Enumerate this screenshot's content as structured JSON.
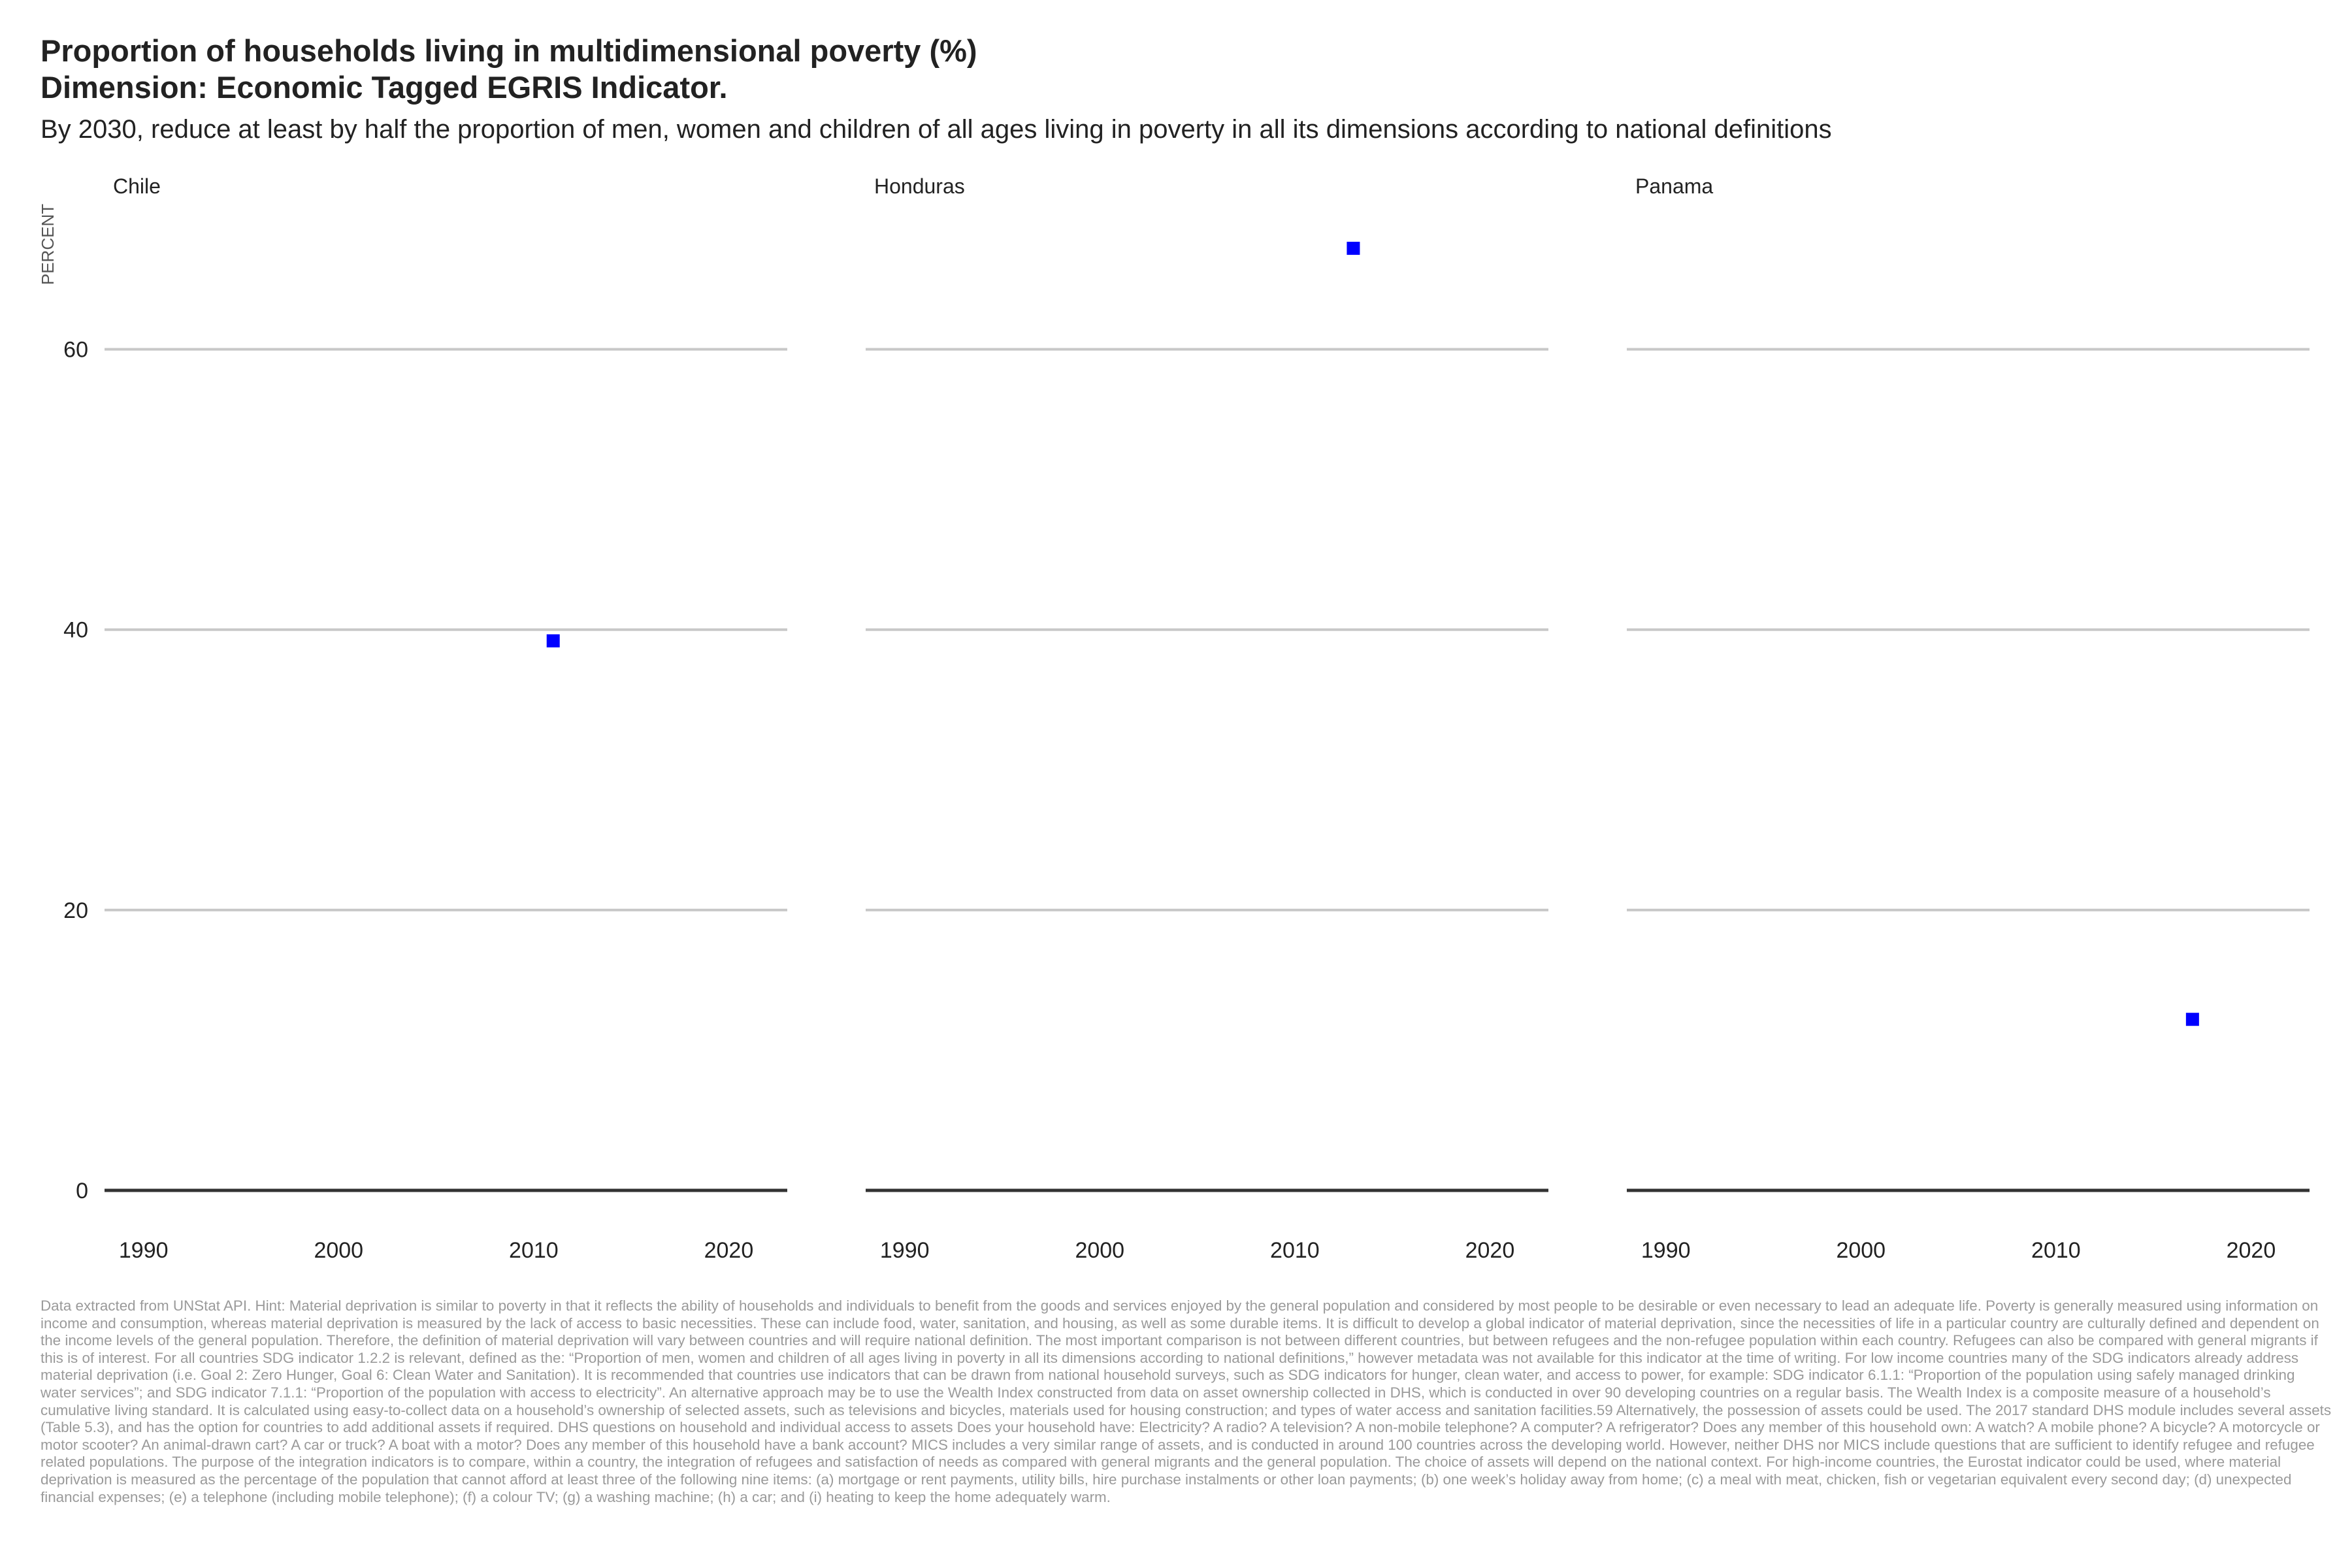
{
  "title": "Proportion of households living in multidimensional poverty (%)",
  "title_line2": "Dimension: Economic Tagged EGRIS Indicator.",
  "subtitle": "By 2030, reduce at least by half the proportion of men, women and children of all ages living in poverty in all its dimensions according to national definitions",
  "footnote": "Data extracted from UNStat API. Hint: Material deprivation is similar to poverty in that it reflects the ability of households and individuals to benefit from the goods and services enjoyed by the general population and considered by most people to be desirable or even necessary to lead an adequate life. Poverty is generally measured using information on income and consumption, whereas material deprivation is measured by the lack of access to basic necessities. These can include food, water, sanitation, and housing, as well as some durable items. It is difficult to develop a global indicator of material deprivation, since the necessities of life in a particular country are culturally defined and dependent on the income levels of the general population. Therefore, the definition of material deprivation will vary between countries and will require national definition. The most important comparison is not between different countries, but between refugees and the non-refugee population within each country. Refugees can also be compared with general migrants if this is of interest. For all countries SDG indicator 1.2.2 is relevant, defined as the: “Proportion of men, women and children of all ages living in poverty in all its dimensions according to national definitions,” however metadata was not available for this indicator at the time of writing. For low income countries many of the SDG indicators already address material deprivation (i.e. Goal 2: Zero Hunger, Goal 6: Clean Water and Sanitation). It is recommended that countries use indicators that can be drawn from national household surveys, such as SDG indicators for hunger, clean water, and access to power, for example: SDG indicator 6.1.1: “Proportion of the population using safely managed drinking water services”; and SDG indicator 7.1.1: “Proportion of the population with access to electricity”. An alternative approach may be to use the Wealth Index constructed from data on asset ownership collected in DHS, which is conducted in over 90 developing countries on a regular basis. The Wealth Index is a composite measure of a household’s cumulative living standard. It is calculated using easy-to-collect data on a household’s ownership of selected assets, such as televisions and bicycles, materials used for housing construction; and types of water access and sanitation facilities.59 Alternatively, the possession of assets could be used. The 2017 standard DHS module includes several assets (Table 5.3), and has the option for countries to add additional assets if required. DHS questions on household and individual access to assets Does your household have: Electricity? A radio? A television? A non-mobile telephone? A computer? A refrigerator? Does any member of this household own: A watch? A mobile phone? A bicycle? A motorcycle or motor scooter? An animal-drawn cart? A car or truck? A boat with a motor? Does any member of this household have a bank account? MICS includes a very similar range of assets, and is conducted in around 100 countries across the developing world. However, neither DHS nor MICS include questions that are sufficient to identify refugee and refugee related populations. The purpose of the integration indicators is to compare, within a country, the integration of refugees and satisfaction of needs as compared with general migrants and the general population. The choice of assets will depend on the national context. For high-income countries, the Eurostat indicator could be used, where material deprivation is measured as the percentage of the population that cannot afford at least three of the following nine items: (a) mortgage or rent payments, utility bills, hire purchase instalments or other loan payments; (b) one week’s holiday away from home; (c) a meal with meat, chicken, fish or vegetarian equivalent every second day; (d) unexpected financial expenses; (e) a telephone (including mobile telephone); (f) a colour TV; (g) a washing machine; (h) a car; and (i) heating to keep the home adequately warm.",
  "colors": {
    "point": "#0000ff",
    "grid": "#c8c8c8",
    "baseline": "#333333",
    "text": "#222222",
    "footnote": "#9a9a9a"
  },
  "chart_data": {
    "type": "scatter",
    "ylabel": "PERCENT",
    "xlabel": "",
    "xlim": [
      1988,
      2023
    ],
    "ylim": [
      0,
      70
    ],
    "x_ticks": [
      1990,
      2000,
      2010,
      2020
    ],
    "y_ticks": [
      0,
      20,
      40,
      60
    ],
    "grid": true,
    "marker": "square",
    "panels": [
      {
        "name": "Chile",
        "points": [
          {
            "x": 2011,
            "y": 39.2
          }
        ]
      },
      {
        "name": "Honduras",
        "points": [
          {
            "x": 2013,
            "y": 67.2
          }
        ]
      },
      {
        "name": "Panama",
        "points": [
          {
            "x": 2017,
            "y": 12.2
          }
        ]
      }
    ]
  }
}
